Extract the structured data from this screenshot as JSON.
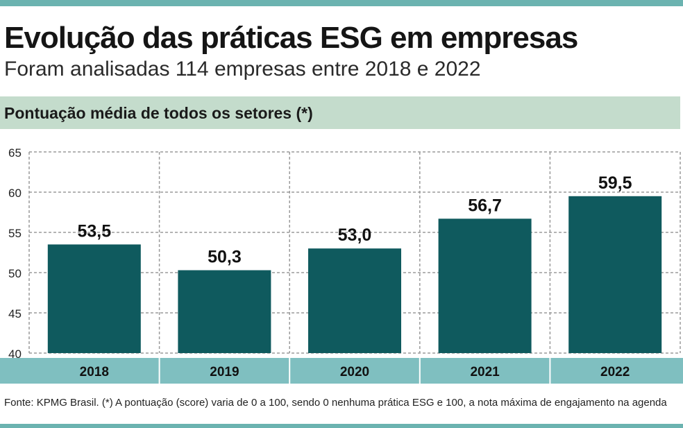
{
  "header": {
    "title": "Evolução das práticas ESG em empresas",
    "subtitle": "Foram analisadas 114 empresas entre 2018 e 2022"
  },
  "section": {
    "title": "Pontuação média de todos os setores (*)"
  },
  "chart_data": {
    "type": "bar",
    "categories": [
      "2018",
      "2019",
      "2020",
      "2021",
      "2022"
    ],
    "values": [
      53.5,
      50.3,
      53.0,
      56.7,
      59.5
    ],
    "value_labels": [
      "53,5",
      "50,3",
      "53,0",
      "56,7",
      "59,5"
    ],
    "ylim": [
      40,
      65
    ],
    "yticks": [
      65,
      60,
      55,
      50,
      45,
      40
    ],
    "grid": true,
    "bar_color": "#0f5a5e",
    "axis_band_color": "#7fbfc0"
  },
  "footer": {
    "note": "Fonte: KPMG Brasil. (*) A pontuação (score) varia de 0 a 100, sendo 0 nenhuma prática ESG e 100, a nota máxima de engajamento na agenda"
  }
}
